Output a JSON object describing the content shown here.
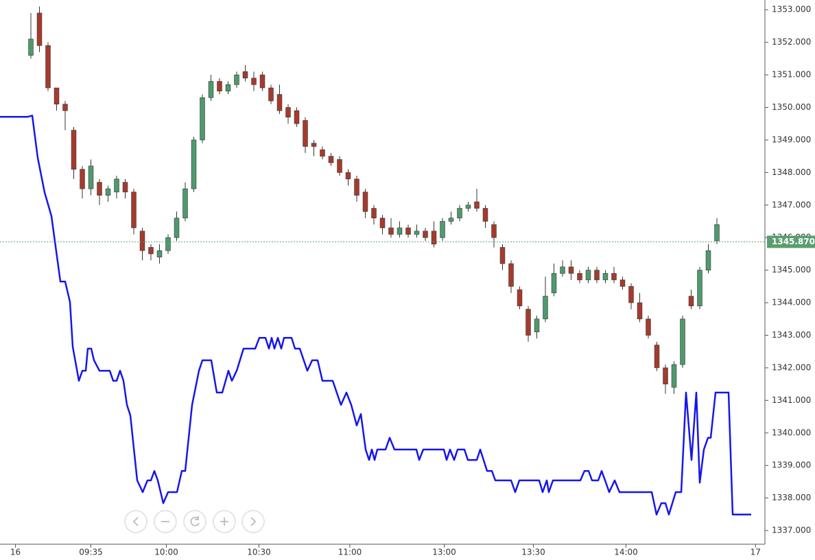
{
  "chart_data": {
    "type": "candlestick",
    "up_color": "#4e9a6c",
    "down_color": "#a63a2c",
    "wick_color": "#333333",
    "x": [
      0,
      1,
      2,
      3,
      4,
      5,
      6,
      7,
      8,
      9,
      10,
      11,
      12,
      13,
      14,
      15,
      16,
      17,
      18,
      19,
      20,
      21,
      22,
      23,
      24,
      25,
      26,
      27,
      28,
      29,
      30,
      31,
      32,
      33,
      34,
      35,
      36,
      37,
      38,
      39,
      40,
      41,
      42,
      43,
      44,
      45,
      46,
      47,
      48,
      49,
      50,
      51,
      52,
      53,
      54,
      55,
      56,
      57,
      58,
      59,
      60,
      61,
      62,
      63,
      64,
      65,
      66,
      67,
      68,
      69,
      70,
      71,
      72,
      73,
      74,
      75,
      76,
      77,
      78,
      79,
      80
    ],
    "open": [
      1351.6,
      1352.9,
      1351.9,
      1350.6,
      1350.1,
      1349.3,
      1348.1,
      1347.5,
      1347.7,
      1347.3,
      1347.4,
      1347.7,
      1347.4,
      1346.2,
      1345.7,
      1345.4,
      1345.6,
      1346.0,
      1346.6,
      1347.5,
      1349.0,
      1350.3,
      1350.8,
      1350.5,
      1350.7,
      1351.1,
      1350.9,
      1351.0,
      1350.6,
      1350.4,
      1350.0,
      1349.9,
      1349.6,
      1348.9,
      1348.7,
      1348.5,
      1348.4,
      1348.0,
      1347.8,
      1347.4,
      1346.9,
      1346.6,
      1346.3,
      1346.1,
      1346.3,
      1346.1,
      1346.2,
      1346.2,
      1346.0,
      1346.5,
      1346.6,
      1346.9,
      1347.1,
      1346.9,
      1346.4,
      1345.7,
      1345.2,
      1344.4,
      1343.8,
      1343.1,
      1343.5,
      1344.3,
      1344.9,
      1345.1,
      1344.9,
      1344.7,
      1345.0,
      1344.7,
      1344.9,
      1344.7,
      1344.5,
      1344.0,
      1343.5,
      1342.7,
      1342.0,
      1341.4,
      1342.1,
      1344.2,
      1343.9,
      1345.0,
      1345.9
    ],
    "high": [
      1352.9,
      1353.1,
      1352.0,
      1350.6,
      1350.2,
      1349.4,
      1348.2,
      1348.4,
      1347.8,
      1347.6,
      1347.9,
      1347.8,
      1347.5,
      1346.3,
      1345.8,
      1345.8,
      1346.1,
      1346.8,
      1347.7,
      1349.1,
      1350.4,
      1351.0,
      1350.9,
      1350.8,
      1351.1,
      1351.3,
      1351.1,
      1351.1,
      1350.7,
      1350.7,
      1350.1,
      1350.0,
      1349.7,
      1349.0,
      1348.8,
      1348.6,
      1348.5,
      1348.1,
      1347.9,
      1347.5,
      1347.0,
      1346.7,
      1346.6,
      1346.5,
      1346.4,
      1346.4,
      1346.3,
      1346.5,
      1346.6,
      1346.8,
      1347.0,
      1347.1,
      1347.5,
      1347.0,
      1346.5,
      1345.8,
      1345.3,
      1344.5,
      1343.9,
      1343.6,
      1344.8,
      1345.2,
      1345.3,
      1345.3,
      1345.0,
      1345.1,
      1345.1,
      1345.0,
      1345.1,
      1344.8,
      1344.6,
      1344.3,
      1343.6,
      1342.8,
      1342.1,
      1342.2,
      1343.6,
      1344.4,
      1345.1,
      1345.8,
      1346.6
    ],
    "low": [
      1351.5,
      1351.7,
      1350.5,
      1349.9,
      1349.3,
      1347.8,
      1347.2,
      1347.3,
      1347.0,
      1347.1,
      1347.2,
      1347.2,
      1346.1,
      1345.3,
      1345.3,
      1345.2,
      1345.5,
      1345.9,
      1346.5,
      1347.4,
      1348.9,
      1350.2,
      1350.4,
      1350.4,
      1350.6,
      1350.8,
      1350.5,
      1350.5,
      1350.1,
      1349.8,
      1349.5,
      1349.4,
      1348.6,
      1348.5,
      1348.4,
      1348.2,
      1347.9,
      1347.6,
      1347.1,
      1346.6,
      1346.4,
      1346.1,
      1346.0,
      1346.0,
      1346.0,
      1346.0,
      1345.9,
      1345.7,
      1345.9,
      1346.4,
      1346.5,
      1346.8,
      1346.8,
      1346.3,
      1345.7,
      1345.0,
      1344.3,
      1343.8,
      1342.8,
      1342.9,
      1343.4,
      1344.2,
      1344.8,
      1344.7,
      1344.6,
      1344.6,
      1344.6,
      1344.6,
      1344.6,
      1344.4,
      1343.8,
      1343.4,
      1342.9,
      1341.9,
      1341.2,
      1341.2,
      1342.0,
      1343.8,
      1343.8,
      1344.9,
      1345.8
    ],
    "close": [
      1352.1,
      1351.9,
      1350.6,
      1350.1,
      1349.9,
      1348.1,
      1347.5,
      1348.2,
      1347.3,
      1347.5,
      1347.8,
      1347.4,
      1346.3,
      1345.6,
      1345.5,
      1345.6,
      1346.0,
      1346.6,
      1347.5,
      1349.0,
      1350.3,
      1350.8,
      1350.5,
      1350.7,
      1351.0,
      1350.9,
      1350.7,
      1350.6,
      1350.2,
      1349.9,
      1349.7,
      1349.5,
      1348.8,
      1348.8,
      1348.5,
      1348.3,
      1348.0,
      1347.8,
      1347.3,
      1346.8,
      1346.6,
      1346.3,
      1346.1,
      1346.3,
      1346.1,
      1346.2,
      1346.0,
      1345.8,
      1346.5,
      1346.6,
      1346.9,
      1347.0,
      1346.9,
      1346.5,
      1346.0,
      1345.2,
      1344.5,
      1343.9,
      1343.0,
      1343.5,
      1344.2,
      1344.9,
      1345.1,
      1344.9,
      1344.7,
      1345.0,
      1344.7,
      1344.9,
      1344.7,
      1344.5,
      1344.0,
      1343.5,
      1343.0,
      1342.0,
      1341.5,
      1342.1,
      1343.5,
      1343.9,
      1345.0,
      1345.6,
      1346.4
    ],
    "line": {
      "color": "#1515ee",
      "x": [
        -3.6,
        -0.4,
        0.16,
        0.8,
        1.6,
        2.4,
        3.44,
        4,
        4.56,
        4.88,
        5.6,
        6,
        6.4,
        6.64,
        7.04,
        7.36,
        8,
        9.2,
        9.6,
        10,
        10.4,
        10.8,
        11.2,
        11.6,
        12.4,
        13.04,
        13.6,
        14,
        14.4,
        14.8,
        15.44,
        16,
        17.04,
        17.6,
        18,
        18.8,
        19.6,
        20,
        21.04,
        21.68,
        22.32,
        23.04,
        23.44,
        24,
        24.8,
        26.16,
        26.64,
        27.36,
        27.76,
        28.08,
        28.4,
        28.8,
        29.2,
        29.52,
        30.4,
        30.8,
        31.36,
        32.24,
        32.8,
        33.44,
        34,
        35.2,
        36.16,
        36.8,
        37.36,
        38,
        38.48,
        39.04,
        39.44,
        39.76,
        40.08,
        40.4,
        41.36,
        41.84,
        42.4,
        44.96,
        45.28,
        45.76,
        48.16,
        48.48,
        48.88,
        49.36,
        49.76,
        50.56,
        50.96,
        52,
        52.4,
        53.2,
        53.76,
        54.16,
        56,
        56.48,
        56.96,
        59.28,
        59.68,
        60.16,
        60.4,
        60.88,
        64.08,
        64.56,
        65.04,
        65.44,
        66.16,
        66.56,
        66.96,
        67.44,
        68.08,
        68.64,
        72.4,
        72.96,
        73.52,
        74,
        74.4,
        75.2,
        75.84,
        76.4,
        77.04,
        77.6,
        78,
        78.48,
        78.96,
        79.28,
        79.84,
        81.36,
        81.84,
        84
      ],
      "values": [
        1349.71,
        1349.71,
        1349.75,
        1348.45,
        1347.39,
        1346.66,
        1344.65,
        1344.65,
        1344.02,
        1342.65,
        1341.6,
        1341.91,
        1341.91,
        1342.59,
        1342.59,
        1342.23,
        1341.91,
        1341.91,
        1341.6,
        1341.6,
        1341.91,
        1341.6,
        1340.86,
        1340.54,
        1338.54,
        1338.18,
        1338.54,
        1338.54,
        1338.83,
        1338.54,
        1337.84,
        1338.18,
        1338.18,
        1338.83,
        1338.83,
        1340.86,
        1341.91,
        1342.23,
        1342.23,
        1341.24,
        1341.24,
        1341.91,
        1341.6,
        1341.91,
        1342.59,
        1342.59,
        1342.92,
        1342.92,
        1342.59,
        1342.92,
        1342.59,
        1342.92,
        1342.59,
        1342.92,
        1342.92,
        1342.59,
        1342.59,
        1341.91,
        1342.23,
        1342.23,
        1341.6,
        1341.6,
        1340.86,
        1341.24,
        1340.86,
        1340.23,
        1340.58,
        1339.49,
        1339.17,
        1339.49,
        1339.17,
        1339.49,
        1339.49,
        1339.85,
        1339.49,
        1339.49,
        1339.17,
        1339.49,
        1339.49,
        1339.17,
        1339.49,
        1339.17,
        1339.49,
        1339.49,
        1339.17,
        1339.17,
        1339.49,
        1338.83,
        1338.83,
        1338.54,
        1338.54,
        1338.18,
        1338.54,
        1338.54,
        1338.18,
        1338.54,
        1338.18,
        1338.54,
        1338.54,
        1338.83,
        1338.83,
        1338.54,
        1338.54,
        1338.83,
        1338.54,
        1338.18,
        1338.54,
        1338.18,
        1338.18,
        1337.49,
        1337.84,
        1337.84,
        1337.49,
        1338.18,
        1338.18,
        1341.24,
        1339.17,
        1341.24,
        1338.47,
        1339.49,
        1339.85,
        1339.85,
        1341.24,
        1341.24,
        1337.49,
        1337.49
      ]
    },
    "last_price": {
      "value": 1345.87,
      "label": "1345.870",
      "color": "#5a9e6e"
    },
    "xlim": [
      -3.6,
      85.6
    ],
    "xticks": [
      {
        "value": -1.8,
        "label": "16"
      },
      {
        "value": 7,
        "label": "09:35"
      },
      {
        "value": 15.8,
        "label": "10:00"
      },
      {
        "value": 26.6,
        "label": "10:30"
      },
      {
        "value": 37.2,
        "label": "11:00"
      },
      {
        "value": 48.2,
        "label": "13:00"
      },
      {
        "value": 58.6,
        "label": "13:30"
      },
      {
        "value": 69.4,
        "label": "14:00"
      },
      {
        "value": 84.5,
        "label": "17"
      }
    ],
    "ylim": [
      1336.58,
      1353.3
    ],
    "yticks": [
      {
        "value": 1337,
        "label": "1337.000"
      },
      {
        "value": 1338,
        "label": "1338.000"
      },
      {
        "value": 1339,
        "label": "1339.000"
      },
      {
        "value": 1340,
        "label": "1340.000"
      },
      {
        "value": 1341,
        "label": "1341.000"
      },
      {
        "value": 1342,
        "label": "1342.000"
      },
      {
        "value": 1343,
        "label": "1343.000"
      },
      {
        "value": 1344,
        "label": "1344.000"
      },
      {
        "value": 1345,
        "label": "1345.000"
      },
      {
        "value": 1346,
        "label": "1346.000"
      },
      {
        "value": 1347,
        "label": "1347.000"
      },
      {
        "value": 1348,
        "label": "1348.000"
      },
      {
        "value": 1349,
        "label": "1349.000"
      },
      {
        "value": 1350,
        "label": "1350.000"
      },
      {
        "value": 1351,
        "label": "1351.000"
      },
      {
        "value": 1352,
        "label": "1352.000"
      },
      {
        "value": 1353,
        "label": "1353.000"
      }
    ]
  }
}
